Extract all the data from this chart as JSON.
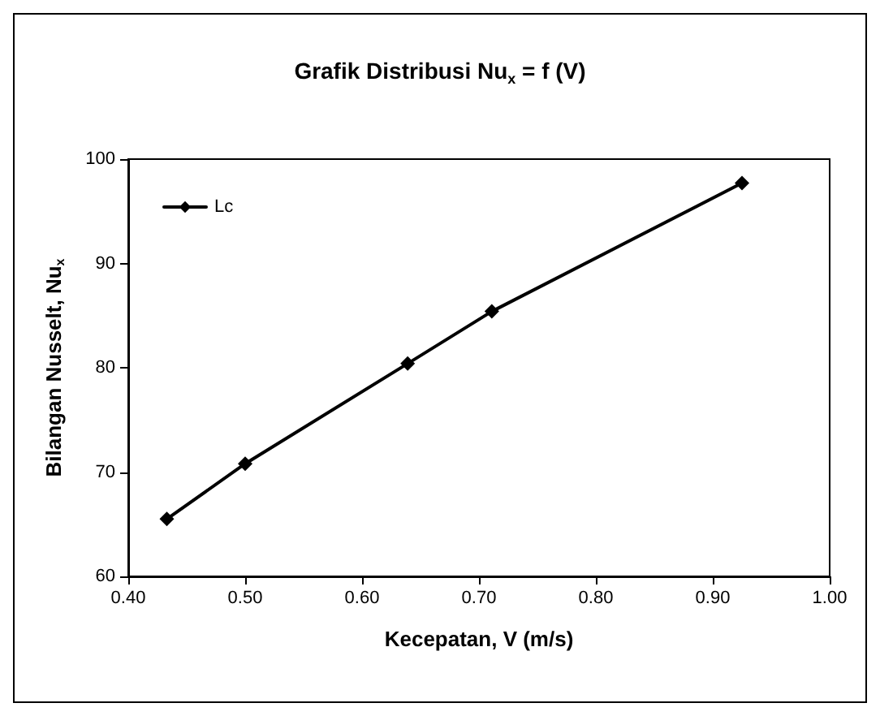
{
  "chart_data": {
    "type": "line",
    "title": "Grafik Distribusi Nu$_{x}$ = f (V)",
    "xlabel": "Kecepatan, V (m/s)",
    "ylabel": "Bilangan Nusselt, Nu$_{x}$",
    "x": [
      0.433,
      0.5,
      0.639,
      0.711,
      0.925
    ],
    "series": [
      {
        "name": "Lc",
        "color": "#000000",
        "values": [
          65.5,
          70.8,
          80.4,
          85.4,
          97.7
        ]
      }
    ],
    "xlim": [
      0.4,
      1.0
    ],
    "xticks": [
      {
        "value": 0.4,
        "label": "0.40"
      },
      {
        "value": 0.5,
        "label": "0.50"
      },
      {
        "value": 0.6,
        "label": "0.60"
      },
      {
        "value": 0.7,
        "label": "0.70"
      },
      {
        "value": 0.8,
        "label": "0.80"
      },
      {
        "value": 0.9,
        "label": "0.90"
      },
      {
        "value": 1.0,
        "label": "1.00"
      }
    ],
    "ylim": [
      60,
      100
    ],
    "yticks": [
      60,
      70,
      80,
      90,
      100
    ],
    "grid": false,
    "legend": "top left",
    "marker": "diamond",
    "line_style": "solid"
  }
}
